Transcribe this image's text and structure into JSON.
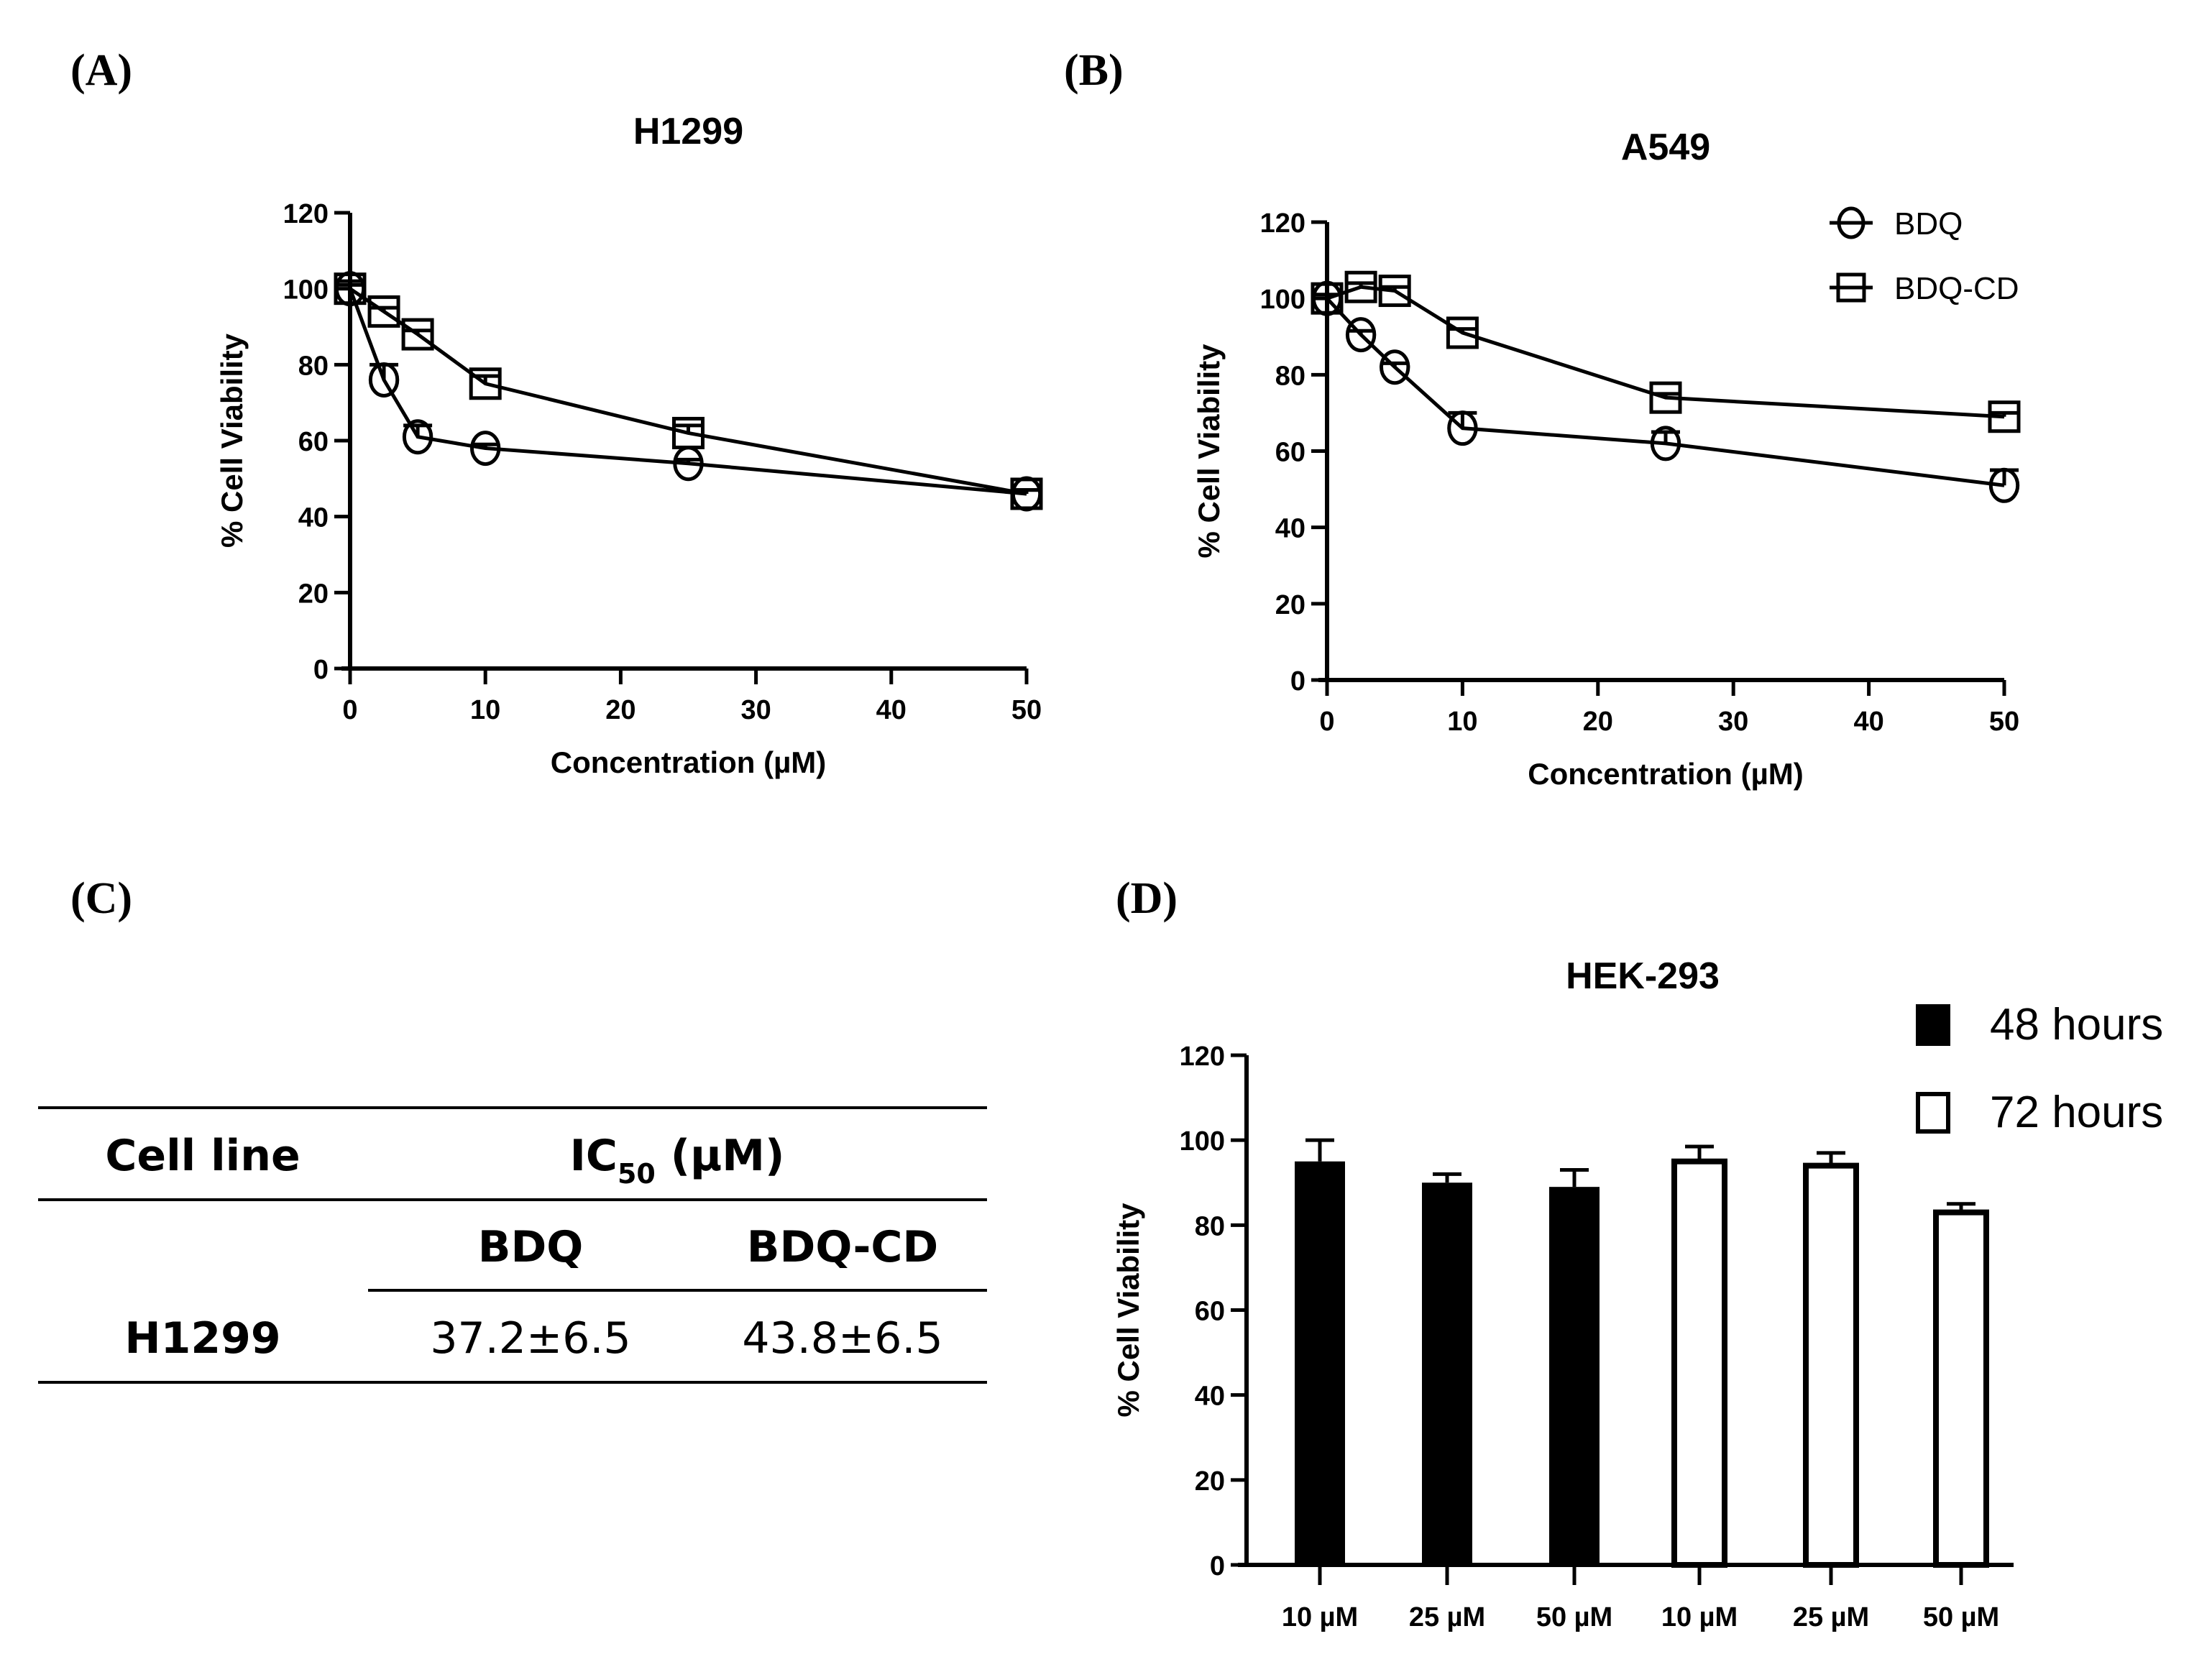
{
  "panel_labels": [
    "(A)",
    "(B)",
    "(C)",
    "(D)"
  ],
  "chart_data": [
    {
      "type": "line",
      "title": "H1299",
      "xlabel": "Concentration (µM)",
      "ylabel": "% Cell Viability",
      "xlim": [
        0,
        50
      ],
      "ylim": [
        0,
        120
      ],
      "xticks": [
        0,
        10,
        20,
        30,
        40,
        50
      ],
      "yticks": [
        0,
        20,
        40,
        60,
        80,
        100,
        120
      ],
      "x": [
        0,
        2.5,
        5,
        10,
        25,
        50
      ],
      "series": [
        {
          "name": "BDQ",
          "marker": "circle",
          "values": [
            100,
            76,
            61,
            58,
            54,
            46
          ],
          "errors": [
            1,
            4,
            3,
            1,
            1,
            1
          ]
        },
        {
          "name": "BDQ-CD",
          "marker": "square",
          "values": [
            100,
            94,
            88,
            75,
            62,
            46
          ],
          "errors": [
            2,
            1,
            1,
            2,
            2,
            1
          ]
        }
      ]
    },
    {
      "type": "line",
      "title": "A549",
      "xlabel": "Concentration (µM)",
      "ylabel": "% Cell Viability",
      "xlim": [
        0,
        50
      ],
      "ylim": [
        0,
        120
      ],
      "xticks": [
        0,
        10,
        20,
        30,
        40,
        50
      ],
      "yticks": [
        0,
        20,
        40,
        60,
        80,
        100,
        120
      ],
      "x": [
        0,
        2.5,
        5,
        10,
        25,
        50
      ],
      "legend": "top-right",
      "series": [
        {
          "name": "BDQ",
          "marker": "circle",
          "values": [
            100,
            90.5,
            82,
            66,
            62,
            51
          ],
          "errors": [
            1,
            1,
            1,
            4,
            3,
            4
          ]
        },
        {
          "name": "BDQ-CD",
          "marker": "square",
          "values": [
            100,
            103,
            102,
            91,
            74,
            69
          ],
          "errors": [
            1,
            1,
            1,
            1,
            1,
            1
          ]
        }
      ]
    },
    {
      "type": "bar",
      "title": "HEK-293",
      "ylabel": "% Cell Viability",
      "ylim": [
        0,
        120
      ],
      "yticks": [
        0,
        20,
        40,
        60,
        80,
        100,
        120
      ],
      "categories": [
        "10 µM",
        "25 µM",
        "50 µM",
        "10 µM",
        "25 µM",
        "50 µM"
      ],
      "values": [
        95,
        90,
        89,
        95,
        94,
        83
      ],
      "errors": [
        5,
        2,
        4,
        3.5,
        3,
        2
      ],
      "groups": [
        "48 hours",
        "48 hours",
        "48 hours",
        "72 hours",
        "72 hours",
        "72 hours"
      ],
      "legend": "top-right",
      "legend_entries": [
        {
          "name": "48 hours",
          "color": "#000000"
        },
        {
          "name": "72 hours",
          "color": "#ffffff"
        }
      ]
    }
  ],
  "table": {
    "header_col": "Cell line",
    "header_group_main": "IC",
    "header_group_sub": "50",
    "header_group_unit": " (µM)",
    "sub_headers": [
      "BDQ",
      "BDQ-CD"
    ],
    "rows": [
      {
        "cell_line": "H1299",
        "values": [
          "37.2±6.5",
          "43.8±6.5"
        ]
      }
    ]
  }
}
